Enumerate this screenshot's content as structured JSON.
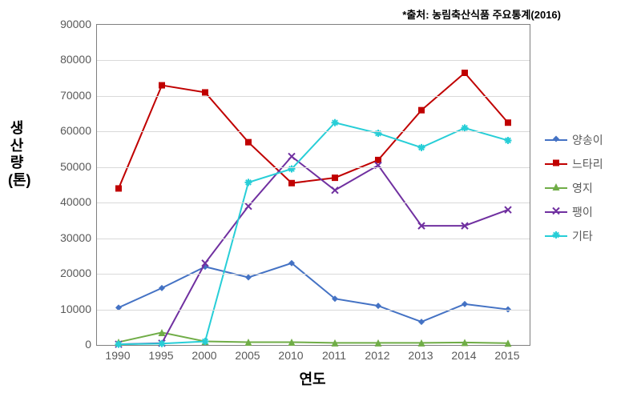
{
  "source_note": "*출처: 농림축산식품 주요통계(2016)",
  "axes": {
    "y_title": "생산량(톤)",
    "x_title": "연도",
    "y_min": 0,
    "y_max": 90000,
    "y_step": 10000,
    "background": "#ffffff",
    "grid_color": "#d9d9d9",
    "axis_color": "#7f7f7f",
    "tick_font_color": "#595959",
    "tick_font_size": 14,
    "title_font_size": 18,
    "title_font_color": "#000000"
  },
  "categories": [
    "1990",
    "1995",
    "2000",
    "2005",
    "2010",
    "2011",
    "2012",
    "2013",
    "2014",
    "2015"
  ],
  "series": [
    {
      "name": "양송이",
      "color": "#4472c4",
      "marker": "diamond",
      "marker_size": 8,
      "line_width": 2,
      "values": [
        10500,
        16000,
        22000,
        19000,
        23000,
        13000,
        11000,
        6500,
        11500,
        10000
      ]
    },
    {
      "name": "느타리",
      "color": "#c00000",
      "marker": "square",
      "marker_size": 8,
      "line_width": 2,
      "values": [
        44000,
        73000,
        71000,
        57000,
        45500,
        47000,
        52000,
        66000,
        76500,
        62500
      ]
    },
    {
      "name": "영지",
      "color": "#70ad47",
      "marker": "triangle",
      "marker_size": 9,
      "line_width": 2,
      "values": [
        800,
        3500,
        1000,
        800,
        800,
        600,
        600,
        600,
        700,
        500
      ]
    },
    {
      "name": "팽이",
      "color": "#7030a0",
      "marker": "x",
      "marker_size": 8,
      "line_width": 2,
      "values": [
        200,
        500,
        23000,
        39000,
        53000,
        43500,
        50500,
        33500,
        33500,
        38000
      ]
    },
    {
      "name": "기타",
      "color": "#27ced7",
      "marker": "star",
      "marker_size": 9,
      "line_width": 2,
      "values": [
        200,
        400,
        1000,
        45700,
        49500,
        62500,
        59500,
        55500,
        61000,
        57500
      ]
    }
  ],
  "legend": {
    "font_size": 14,
    "font_color": "#595959"
  }
}
